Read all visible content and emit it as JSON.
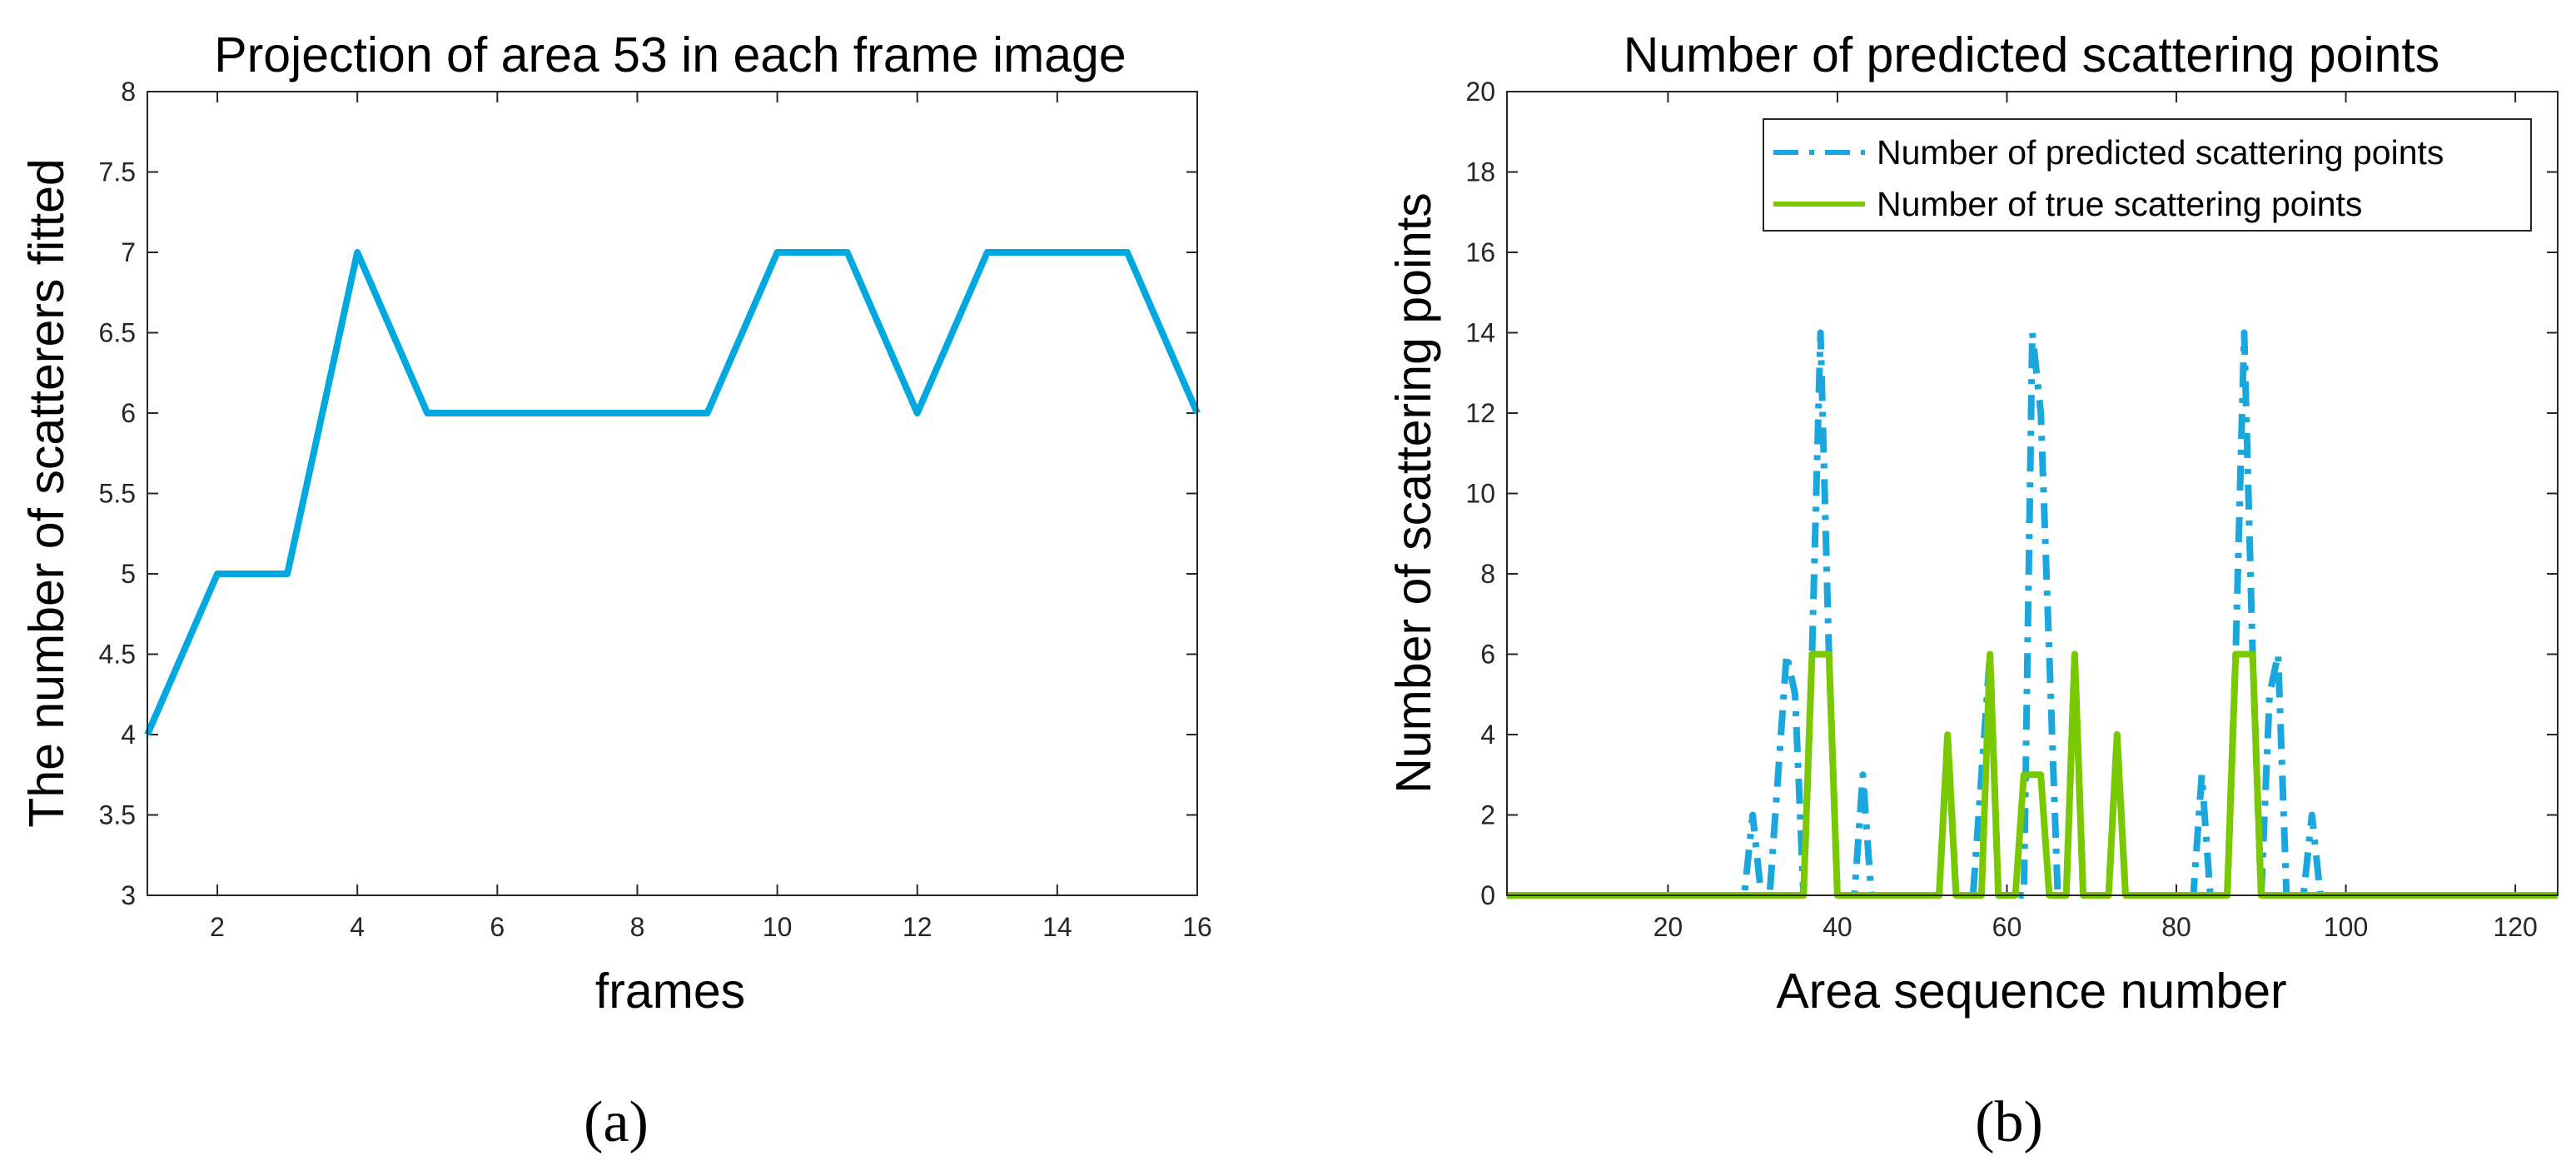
{
  "chart_data": [
    {
      "type": "line",
      "panel_label": "(a)",
      "title": "Projection of area 53 in each frame image",
      "xlabel": "frames",
      "ylabel": "The number of scatterers fitted",
      "xlim": [
        1,
        16
      ],
      "ylim": [
        3,
        8
      ],
      "xticks": [
        2,
        4,
        6,
        8,
        10,
        12,
        14,
        16
      ],
      "xtick_labels": [
        "2",
        "4",
        "6",
        "8",
        "10",
        "12",
        "14",
        "16"
      ],
      "yticks": [
        3,
        3.5,
        4,
        4.5,
        5,
        5.5,
        6,
        6.5,
        7,
        7.5,
        8
      ],
      "ytick_labels": [
        "3",
        "3.5",
        "4",
        "4.5",
        "5",
        "5.5",
        "6",
        "6.5",
        "7",
        "7.5",
        "8"
      ],
      "grid": false,
      "series": [
        {
          "color": "#00a8e0",
          "style": "solid",
          "x": [
            1,
            2,
            3,
            4,
            5,
            6,
            7,
            8,
            9,
            10,
            11,
            12,
            13,
            14,
            15,
            16
          ],
          "y": [
            4,
            5,
            5,
            7,
            6,
            6,
            6,
            6,
            6,
            7,
            7,
            6,
            7,
            7,
            7,
            6
          ]
        }
      ]
    },
    {
      "type": "line",
      "panel_label": "(b)",
      "title": "Number of predicted scattering points",
      "xlabel": "Area sequence number",
      "ylabel": "Number of scattering points",
      "xlim": [
        1,
        125
      ],
      "ylim": [
        0,
        20
      ],
      "xticks": [
        20,
        40,
        60,
        80,
        100,
        120
      ],
      "xtick_labels": [
        "20",
        "40",
        "60",
        "80",
        "100",
        "120"
      ],
      "yticks": [
        0,
        2,
        4,
        6,
        8,
        10,
        12,
        14,
        16,
        18,
        20
      ],
      "ytick_labels": [
        "0",
        "2",
        "4",
        "6",
        "8",
        "10",
        "12",
        "14",
        "16",
        "18",
        "20"
      ],
      "grid": false,
      "legend_position": "top-right",
      "series": [
        {
          "name": "Number of predicted scattering points",
          "color": "#1aa7de",
          "style": "dashdot",
          "x": [
            1,
            29,
            30,
            31,
            32,
            33,
            34,
            35,
            36,
            37,
            38,
            39,
            40,
            41,
            42,
            43,
            44,
            51,
            52,
            53,
            54,
            55,
            56,
            57,
            58,
            59,
            60,
            61,
            62,
            63,
            64,
            65,
            66,
            67,
            68,
            69,
            70,
            71,
            72,
            73,
            74,
            75,
            82,
            83,
            84,
            86,
            87,
            88,
            89,
            90,
            91,
            92,
            93,
            94,
            95,
            96,
            97,
            125
          ],
          "y": [
            0,
            0,
            2,
            0,
            0,
            3,
            6,
            5,
            0,
            6,
            14,
            6,
            0,
            0,
            0,
            3,
            0,
            0,
            0,
            4,
            0,
            0,
            0,
            3,
            6,
            0,
            0,
            0,
            0,
            14,
            12,
            6,
            0,
            0,
            6,
            0,
            0,
            0,
            0,
            4,
            0,
            0,
            0,
            3,
            0,
            0,
            6,
            14,
            6,
            0,
            5,
            6,
            0,
            0,
            0,
            2,
            0,
            0
          ]
        },
        {
          "name": "Number of true scattering points",
          "color": "#7ac800",
          "style": "solid",
          "x": [
            1,
            36,
            37,
            38,
            39,
            40,
            52,
            53,
            54,
            57,
            58,
            59,
            61,
            62,
            63,
            64,
            65,
            67,
            68,
            69,
            72,
            73,
            74,
            86,
            87,
            88,
            89,
            90,
            125
          ],
          "y": [
            0,
            0,
            6,
            6,
            6,
            0,
            0,
            4,
            0,
            0,
            6,
            0,
            0,
            3,
            3,
            3,
            0,
            0,
            6,
            0,
            0,
            4,
            0,
            0,
            6,
            6,
            6,
            0,
            0
          ]
        }
      ]
    }
  ]
}
